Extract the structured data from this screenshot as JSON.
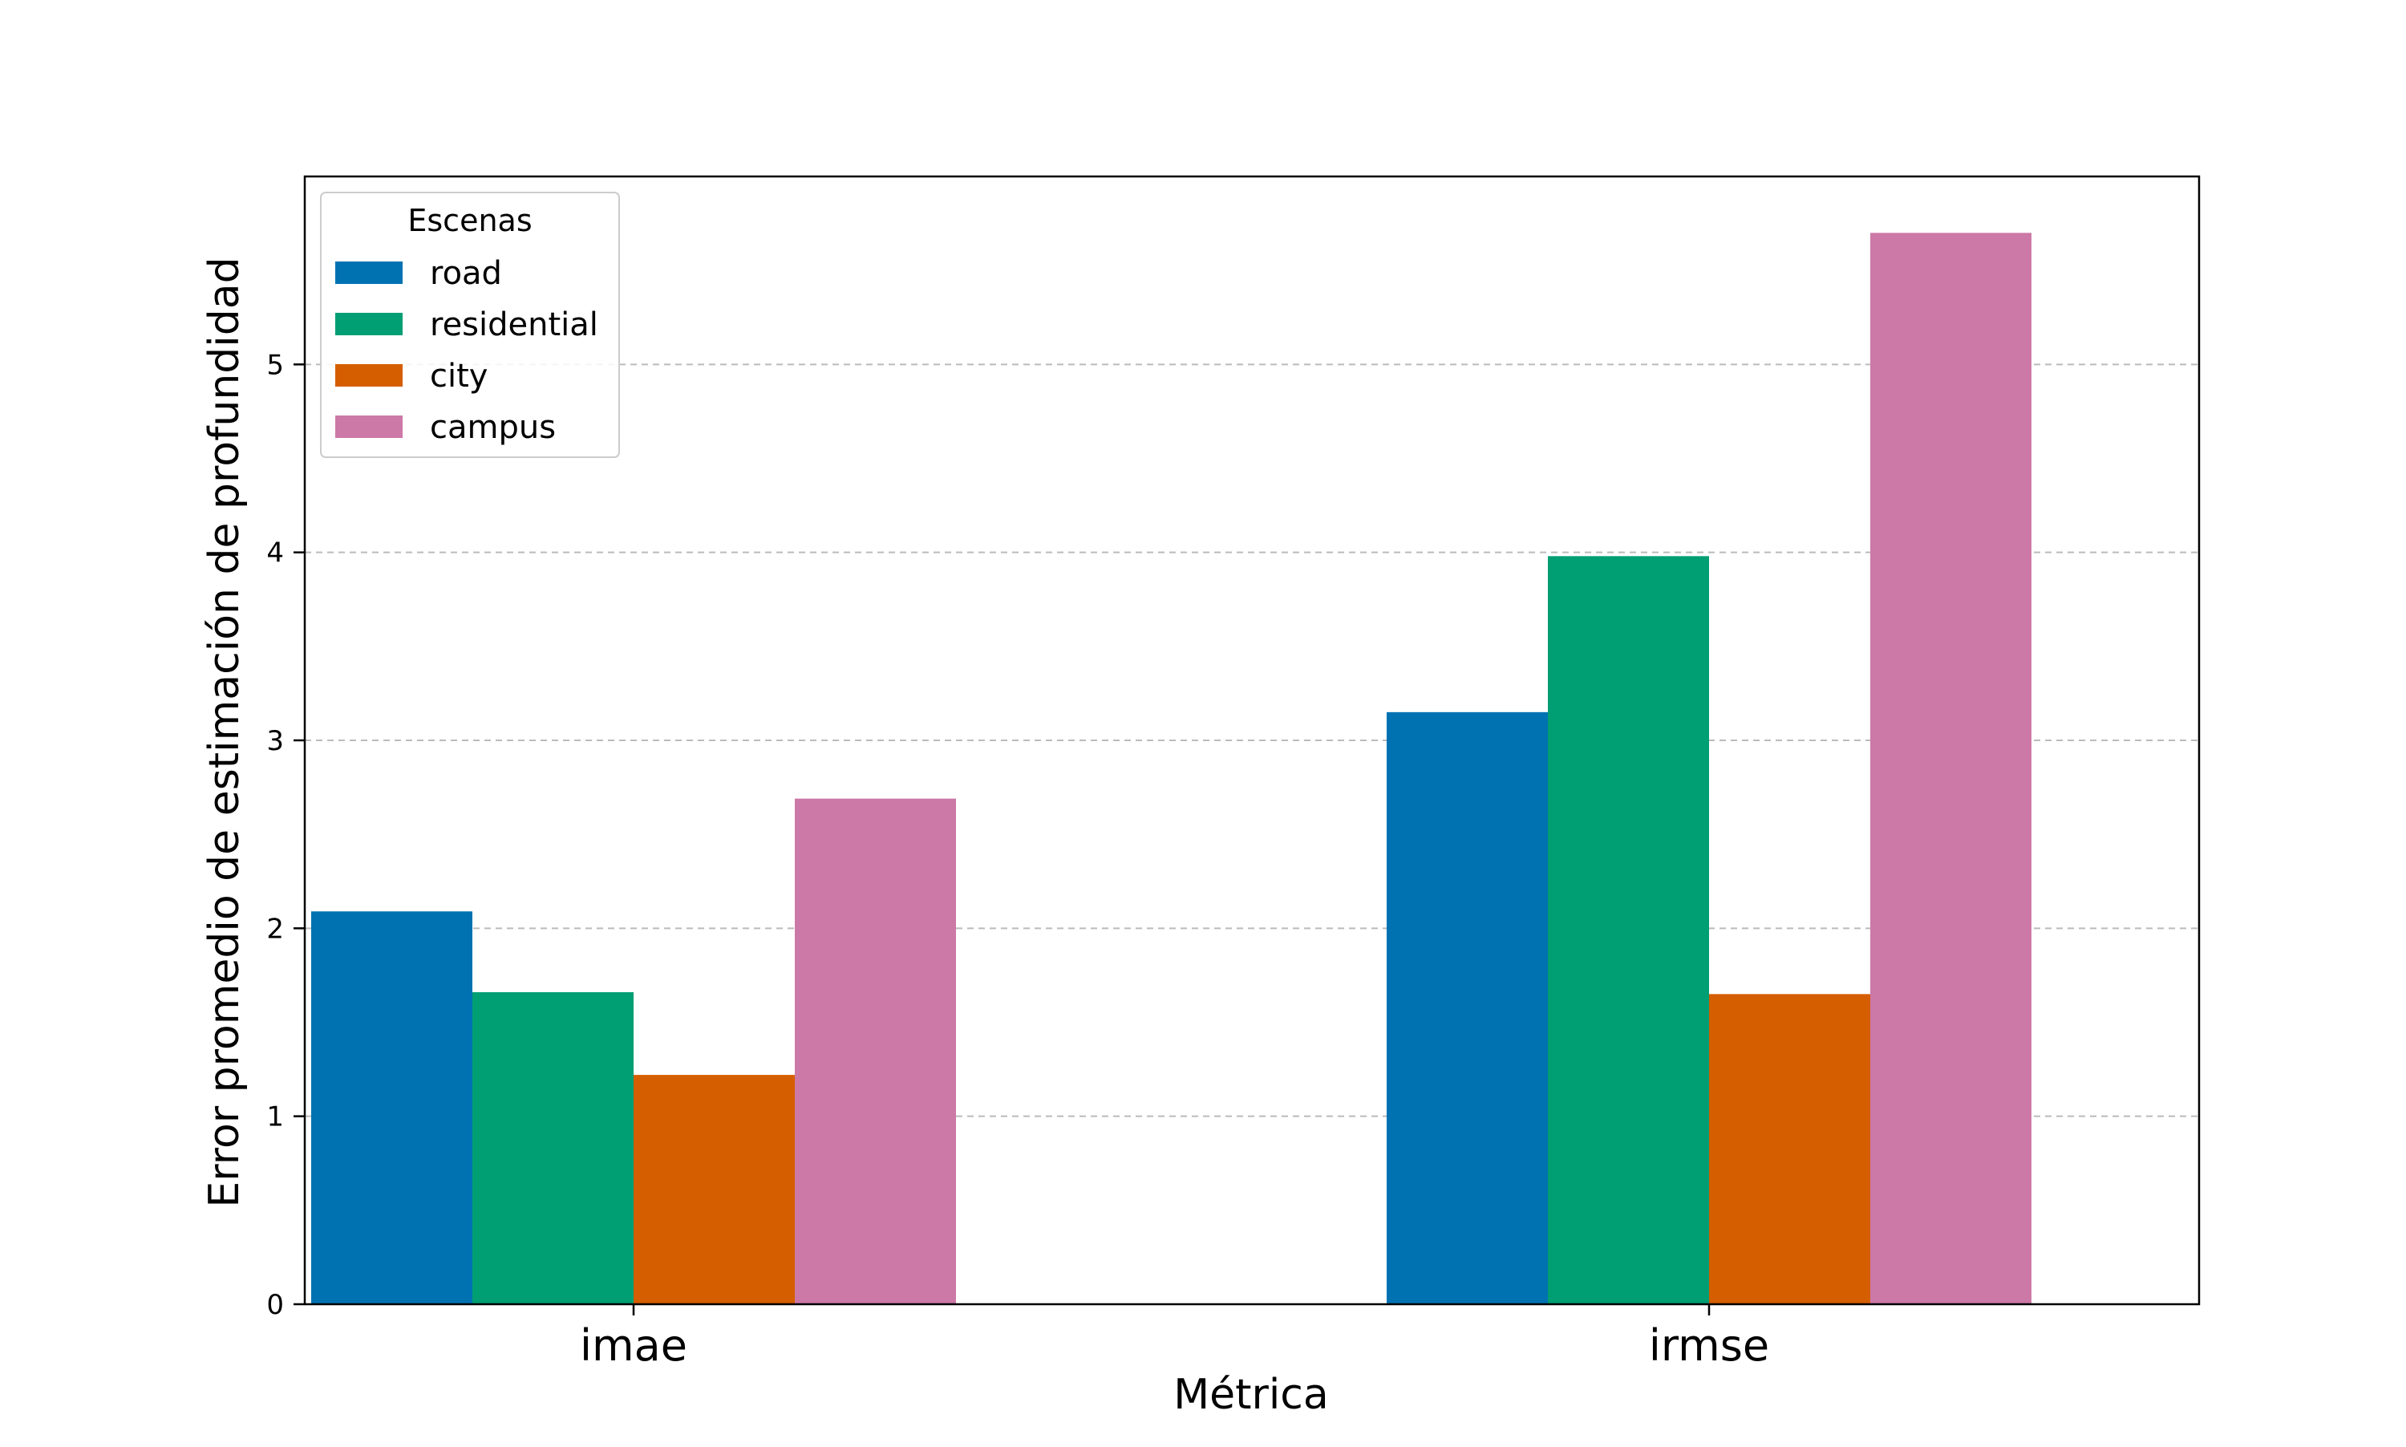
{
  "chart_data": {
    "type": "bar",
    "categories": [
      "imae",
      "irmse"
    ],
    "series": [
      {
        "name": "road",
        "values": [
          2.09,
          3.15
        ],
        "color": "#0072b2"
      },
      {
        "name": "residential",
        "values": [
          1.66,
          3.98
        ],
        "color": "#009e73"
      },
      {
        "name": "city",
        "values": [
          1.22,
          1.65
        ],
        "color": "#d55e00"
      },
      {
        "name": "campus",
        "values": [
          2.69,
          5.7
        ],
        "color": "#cc79a7"
      }
    ],
    "title": "",
    "xlabel": "Métrica",
    "ylabel": "Error promedio de estimación de profundidad",
    "ylim": [
      0,
      6
    ],
    "yticks": [
      0,
      1,
      2,
      3,
      4,
      5
    ],
    "grid": {
      "y": true,
      "style": "dashed"
    },
    "legend": {
      "title": "Escenas",
      "position": "top-left"
    }
  }
}
